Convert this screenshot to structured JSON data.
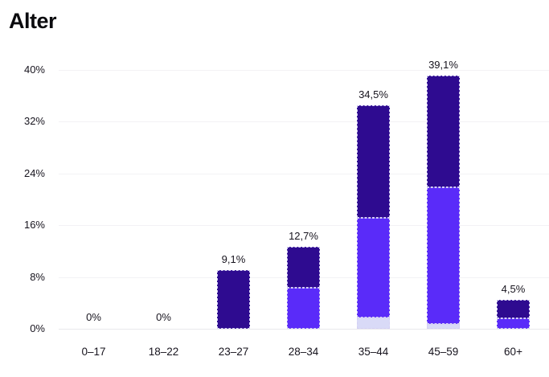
{
  "title": "Alter",
  "colors": {
    "dark": "#2e0b90",
    "mid": "#5a2bf9",
    "light": "#d9daf7",
    "grid": "#f3f2f5",
    "baseline": "#e9e8ec",
    "text": "#17141e"
  },
  "chart_data": {
    "type": "bar",
    "stacked": true,
    "title": "Alter",
    "xlabel": "",
    "ylabel": "",
    "categories": [
      "0–17",
      "18–22",
      "23–27",
      "28–34",
      "35–44",
      "45–59",
      "60+"
    ],
    "series": [
      {
        "name": "segment-light",
        "color_key": "light",
        "values": [
          0,
          0,
          0,
          0,
          1.8,
          0.7,
          0
        ]
      },
      {
        "name": "segment-mid",
        "color_key": "mid",
        "values": [
          0,
          0,
          0,
          6.3,
          15.4,
          21.2,
          1.6
        ]
      },
      {
        "name": "segment-dark",
        "color_key": "dark",
        "values": [
          0,
          0,
          9.1,
          6.4,
          17.3,
          17.2,
          2.9
        ]
      }
    ],
    "totals": [
      0,
      0,
      9.1,
      12.7,
      34.5,
      39.1,
      4.5
    ],
    "total_labels": [
      "0%",
      "0%",
      "9,1%",
      "12,7%",
      "34,5%",
      "39,1%",
      "4,5%"
    ],
    "y_ticks": [
      "40%",
      "32%",
      "24%",
      "16%",
      "8%",
      "0%"
    ],
    "ylim": [
      0,
      40
    ],
    "grid": true,
    "legend": "none"
  }
}
